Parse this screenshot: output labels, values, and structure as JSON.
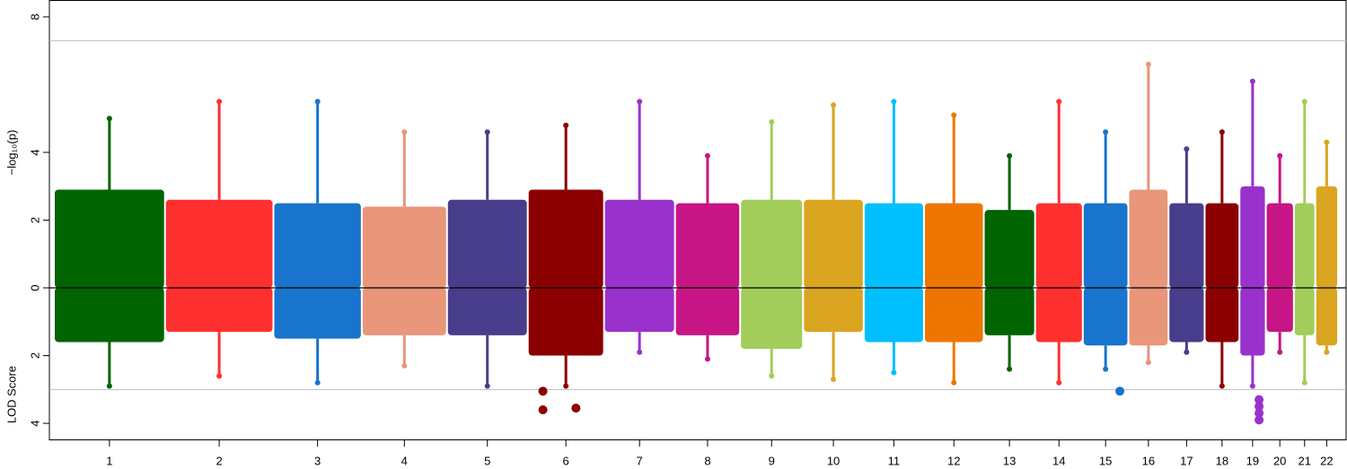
{
  "chart_data": {
    "type": "miami",
    "y_label": "−log₁₀(p)",
    "y2_label": "LOD Score",
    "ylim": [
      0,
      8.5
    ],
    "yticks": [
      0,
      2,
      4,
      8
    ],
    "y2lim": [
      0,
      4.5
    ],
    "y2ticks": [
      2,
      4
    ],
    "xlim": [
      0,
      2890
    ],
    "thresholds": {
      "upper": 7.3,
      "lower": 3
    },
    "series": [
      {
        "name": "1",
        "color": "#006400",
        "x": [
          0,
          249
        ],
        "upper": [
          2.9,
          5.0
        ],
        "lower": [
          1.6,
          2.9
        ]
      },
      {
        "name": "2",
        "color": "#ff3030",
        "x": [
          249,
          492
        ],
        "upper": [
          2.6,
          5.5
        ],
        "lower": [
          1.3,
          2.6
        ]
      },
      {
        "name": "3",
        "color": "#1874cd",
        "x": [
          492,
          690
        ],
        "upper": [
          2.5,
          5.5
        ],
        "lower": [
          1.5,
          2.8
        ]
      },
      {
        "name": "4",
        "color": "#e9967a",
        "x": [
          690,
          881
        ],
        "upper": [
          2.4,
          4.6
        ],
        "lower": [
          1.4,
          2.3
        ]
      },
      {
        "name": "5",
        "color": "#483d8b",
        "x": [
          881,
          1062
        ],
        "upper": [
          2.6,
          4.6
        ],
        "lower": [
          1.4,
          2.9
        ]
      },
      {
        "name": "6",
        "color": "#8b0000",
        "x": [
          1062,
          1233
        ],
        "upper": [
          2.9,
          4.8
        ],
        "lower": [
          2.0,
          2.9
        ]
      },
      {
        "name": "7",
        "color": "#9932cc",
        "x": [
          1233,
          1392
        ],
        "upper": [
          2.6,
          5.5
        ],
        "lower": [
          1.3,
          1.9
        ]
      },
      {
        "name": "8",
        "color": "#c71585",
        "x": [
          1392,
          1538
        ],
        "upper": [
          2.5,
          3.9
        ],
        "lower": [
          1.4,
          2.1
        ]
      },
      {
        "name": "9",
        "color": "#a2cd5a",
        "x": [
          1538,
          1679
        ],
        "upper": [
          2.6,
          4.9
        ],
        "lower": [
          1.8,
          2.6
        ]
      },
      {
        "name": "10",
        "color": "#daa520",
        "x": [
          1679,
          1815
        ],
        "upper": [
          2.6,
          5.4
        ],
        "lower": [
          1.3,
          2.7
        ]
      },
      {
        "name": "11",
        "color": "#00bfff",
        "x": [
          1815,
          1950
        ],
        "upper": [
          2.5,
          5.5
        ],
        "lower": [
          1.6,
          2.5
        ]
      },
      {
        "name": "12",
        "color": "#ee7600",
        "x": [
          1950,
          2084
        ],
        "upper": [
          2.5,
          5.1
        ],
        "lower": [
          1.6,
          2.8
        ]
      },
      {
        "name": "13",
        "color": "#006400",
        "x": [
          2084,
          2199
        ],
        "upper": [
          2.3,
          3.9
        ],
        "lower": [
          1.4,
          2.4
        ]
      },
      {
        "name": "14",
        "color": "#ff3030",
        "x": [
          2199,
          2306
        ],
        "upper": [
          2.5,
          5.5
        ],
        "lower": [
          1.6,
          2.8
        ]
      },
      {
        "name": "15",
        "color": "#1874cd",
        "x": [
          2306,
          2408
        ],
        "upper": [
          2.5,
          4.6
        ],
        "lower": [
          1.7,
          2.4
        ]
      },
      {
        "name": "16",
        "color": "#e9967a",
        "x": [
          2408,
          2498
        ],
        "upper": [
          2.9,
          6.6
        ],
        "lower": [
          1.7,
          2.2
        ]
      },
      {
        "name": "17",
        "color": "#483d8b",
        "x": [
          2498,
          2579
        ],
        "upper": [
          2.5,
          4.1
        ],
        "lower": [
          1.6,
          1.9
        ]
      },
      {
        "name": "18",
        "color": "#8b0000",
        "x": [
          2579,
          2657
        ],
        "upper": [
          2.5,
          4.6
        ],
        "lower": [
          1.6,
          2.9
        ]
      },
      {
        "name": "19",
        "color": "#9932cc",
        "x": [
          2657,
          2716
        ],
        "upper": [
          3.0,
          6.1
        ],
        "lower": [
          2.0,
          2.9
        ]
      },
      {
        "name": "20",
        "color": "#c71585",
        "x": [
          2716,
          2779
        ],
        "upper": [
          2.5,
          3.9
        ],
        "lower": [
          1.3,
          1.9
        ]
      },
      {
        "name": "21",
        "color": "#a2cd5a",
        "x": [
          2779,
          2827
        ],
        "upper": [
          2.5,
          5.5
        ],
        "lower": [
          1.4,
          2.8
        ]
      },
      {
        "name": "22",
        "color": "#daa520",
        "x": [
          2827,
          2878
        ],
        "upper": [
          3.0,
          4.3
        ],
        "lower": [
          1.7,
          1.9
        ]
      }
    ],
    "lod_hits": {
      "x": [
        1096,
        1096,
        1170,
        2389,
        2701,
        2701,
        2701,
        2701
      ],
      "values": [
        3.05,
        3.6,
        3.55,
        3.05,
        3.3,
        3.5,
        3.7,
        3.9
      ],
      "colors": [
        "#8b0000",
        "#8b0000",
        "#8b0000",
        "#1874cd",
        "#9932cc",
        "#9932cc",
        "#9932cc",
        "#9932cc"
      ]
    }
  }
}
